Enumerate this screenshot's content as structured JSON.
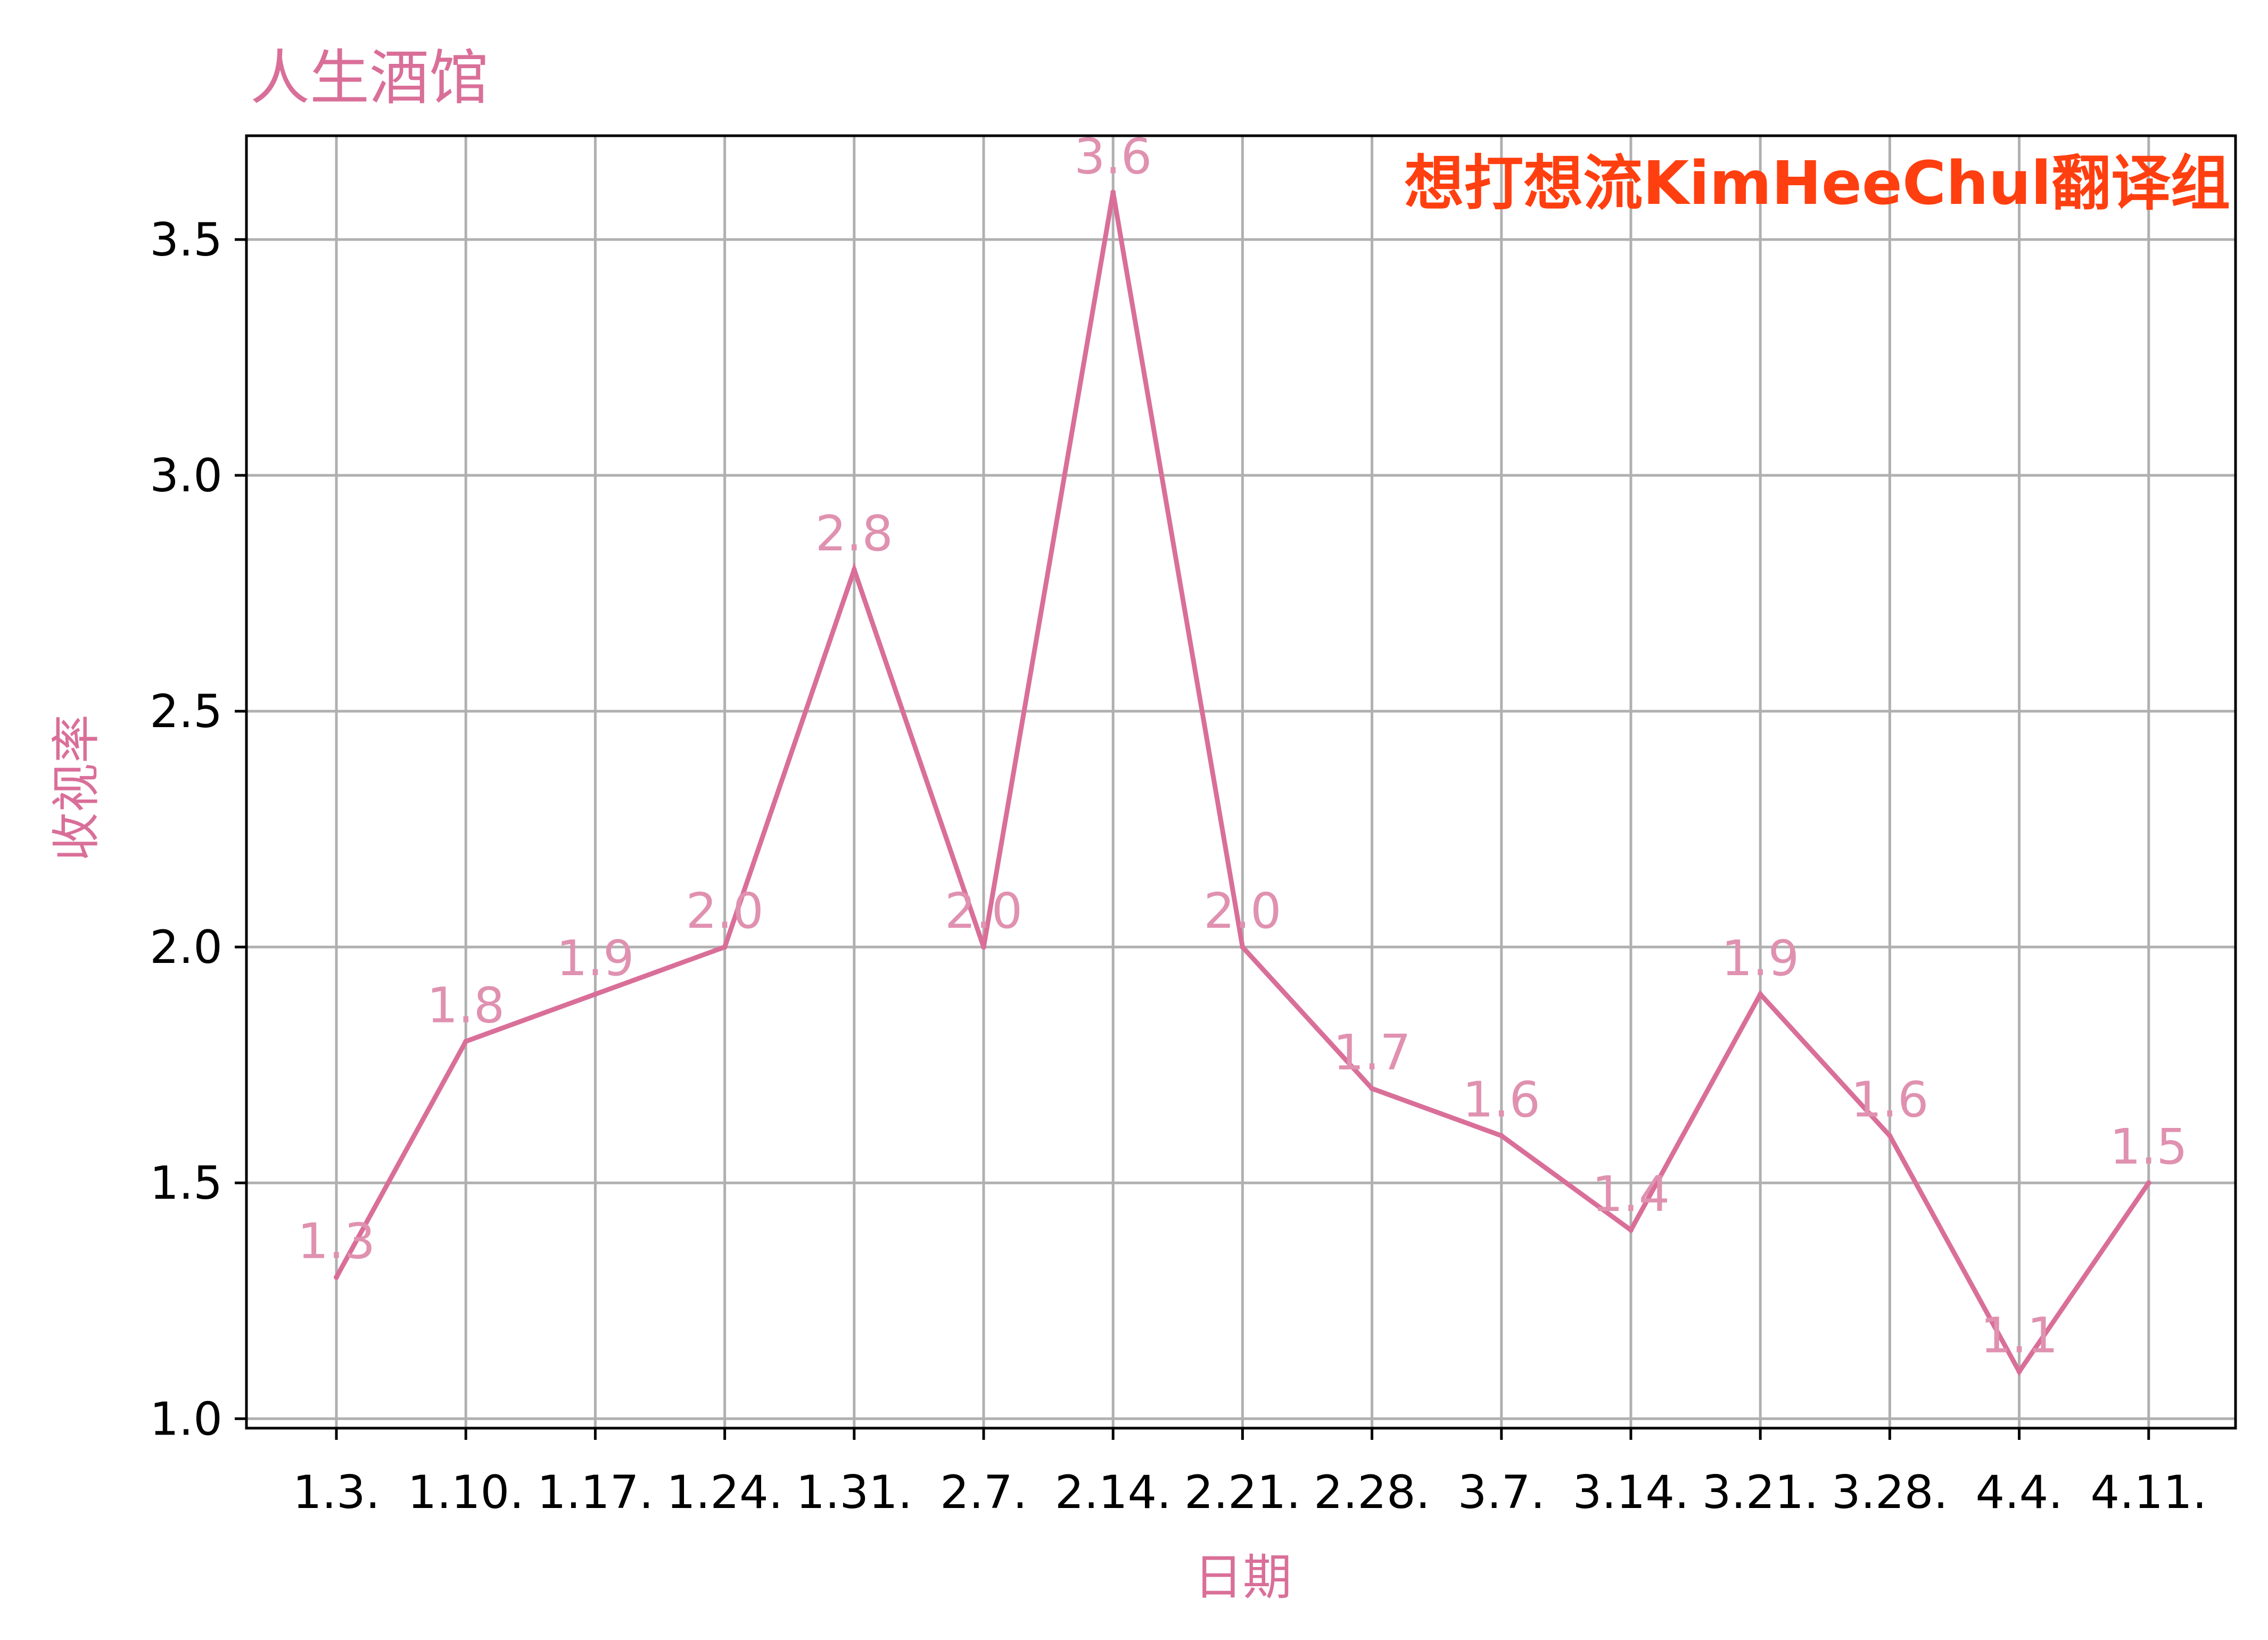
{
  "chart_data": {
    "type": "line",
    "title": "人生酒馆",
    "watermark": "想打想流KimHeeChul翻译组",
    "xlabel": "日期",
    "ylabel": "收视率",
    "categories": [
      "1.3.",
      "1.10.",
      "1.17.",
      "1.24.",
      "1.31.",
      "2.7.",
      "2.14.",
      "2.21.",
      "2.28.",
      "3.7.",
      "3.14.",
      "3.21.",
      "3.28.",
      "4.4.",
      "4.11."
    ],
    "series": [
      {
        "values": [
          1.3,
          1.8,
          1.9,
          2.0,
          2.8,
          2.0,
          3.6,
          2.0,
          1.7,
          1.6,
          1.4,
          1.9,
          1.6,
          1.1,
          1.5
        ],
        "labels": [
          "1.3",
          "1.8",
          "1.9",
          "2.0",
          "2.8",
          "2.0",
          "3.6",
          "2.0",
          "1.7",
          "1.6",
          "1.4",
          "1.9",
          "1.6",
          "1.1",
          "1.5"
        ]
      }
    ],
    "ylim": [
      0.98,
      3.72
    ],
    "yticks": [
      1.0,
      1.5,
      2.0,
      2.5,
      3.0,
      3.5
    ],
    "ytick_labels": [
      "1.0",
      "1.5",
      "2.0",
      "2.5",
      "3.0",
      "3.5"
    ],
    "grid": true,
    "colors": {
      "line": "#d96f99",
      "data_label": "#e091b0",
      "title": "#d96f99",
      "axis_title": "#d96f99",
      "watermark": "#ff3f10",
      "grid": "#b0b0b0",
      "axis": "#000000"
    }
  }
}
